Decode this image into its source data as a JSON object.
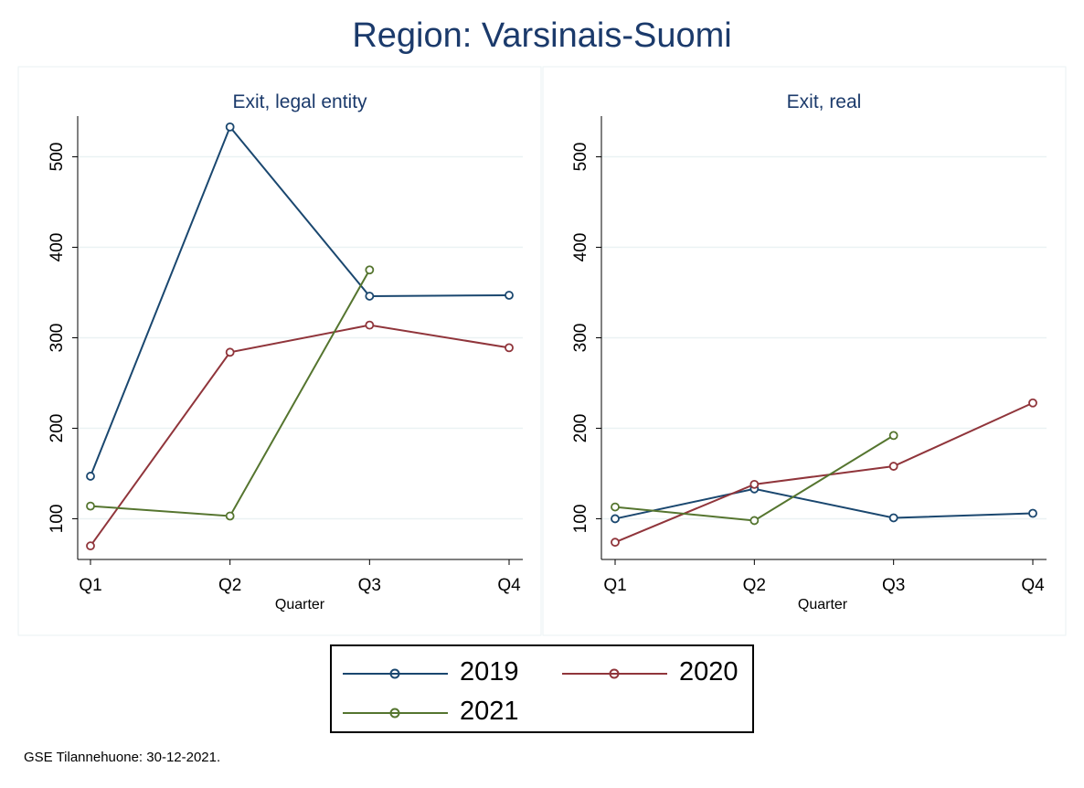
{
  "title": "Region: Varsinais-Suomi",
  "footer": "GSE Tilannehuone: 30-12-2021.",
  "colors": {
    "2019": "#1a476f",
    "2020": "#90353b",
    "2021": "#55752f"
  },
  "legend": [
    {
      "name": "2019",
      "color": "#1a476f"
    },
    {
      "name": "2020",
      "color": "#90353b"
    },
    {
      "name": "2021",
      "color": "#55752f"
    }
  ],
  "chart_data": [
    {
      "type": "line",
      "title": "Exit, legal entity",
      "xlabel": "Quarter",
      "ylabel": "",
      "categories": [
        "Q1",
        "Q2",
        "Q3",
        "Q4"
      ],
      "ylim": [
        55,
        545
      ],
      "yticks": [
        100,
        200,
        300,
        400,
        500
      ],
      "grid": true,
      "series": [
        {
          "name": "2019",
          "values": [
            147,
            533,
            346,
            347
          ]
        },
        {
          "name": "2020",
          "values": [
            70,
            284,
            314,
            289
          ]
        },
        {
          "name": "2021",
          "values": [
            114,
            103,
            375,
            null
          ]
        }
      ]
    },
    {
      "type": "line",
      "title": "Exit, real",
      "xlabel": "Quarter",
      "ylabel": "",
      "categories": [
        "Q1",
        "Q2",
        "Q3",
        "Q4"
      ],
      "ylim": [
        55,
        545
      ],
      "yticks": [
        100,
        200,
        300,
        400,
        500
      ],
      "grid": true,
      "series": [
        {
          "name": "2019",
          "values": [
            100,
            133,
            101,
            106
          ]
        },
        {
          "name": "2020",
          "values": [
            74,
            138,
            158,
            228
          ]
        },
        {
          "name": "2021",
          "values": [
            113,
            98,
            192,
            null
          ]
        }
      ]
    }
  ]
}
